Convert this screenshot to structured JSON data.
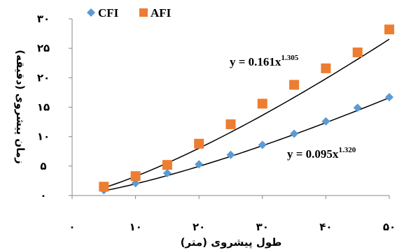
{
  "chart_data": {
    "type": "scatter",
    "xlabel": "طول پیشروی (متر)",
    "ylabel": "زمان پیشروی (دقیقه)",
    "xlim": [
      0,
      50
    ],
    "ylim": [
      0,
      30
    ],
    "x_ticks": [
      "۰",
      "۱۰",
      "۲۰",
      "۳۰",
      "۴۰",
      "۵۰"
    ],
    "y_ticks": [
      "۰",
      "۵",
      "۱۰",
      "۱۵",
      "۲۰",
      "۲۵",
      "۳۰"
    ],
    "x_tick_values": [
      0,
      10,
      20,
      30,
      40,
      50
    ],
    "y_tick_values": [
      0,
      5,
      10,
      15,
      20,
      25,
      30
    ],
    "grid": false,
    "legend_position": "top-left",
    "series": [
      {
        "name": "CFI",
        "marker": "diamond",
        "color": "#5b9bd5",
        "x": [
          5,
          10,
          15,
          20,
          25,
          30,
          35,
          40,
          45,
          50
        ],
        "y": [
          0.9,
          2.1,
          3.8,
          5.3,
          6.9,
          8.6,
          10.5,
          12.6,
          14.9,
          16.7
        ],
        "trendline": {
          "equation_prefix": "y = 0.095x",
          "equation_exponent": "1.320",
          "a": 0.095,
          "b": 1.32
        }
      },
      {
        "name": "AFI",
        "marker": "square",
        "color": "#ed7d31",
        "x": [
          5,
          10,
          15,
          20,
          25,
          30,
          35,
          40,
          45,
          50
        ],
        "y": [
          1.5,
          3.3,
          5.2,
          8.8,
          12.1,
          15.6,
          18.8,
          21.6,
          24.3,
          28.2
        ],
        "trendline": {
          "equation_prefix": "y = 0.161x",
          "equation_exponent": "1.305",
          "a": 0.161,
          "b": 1.305
        }
      }
    ]
  }
}
